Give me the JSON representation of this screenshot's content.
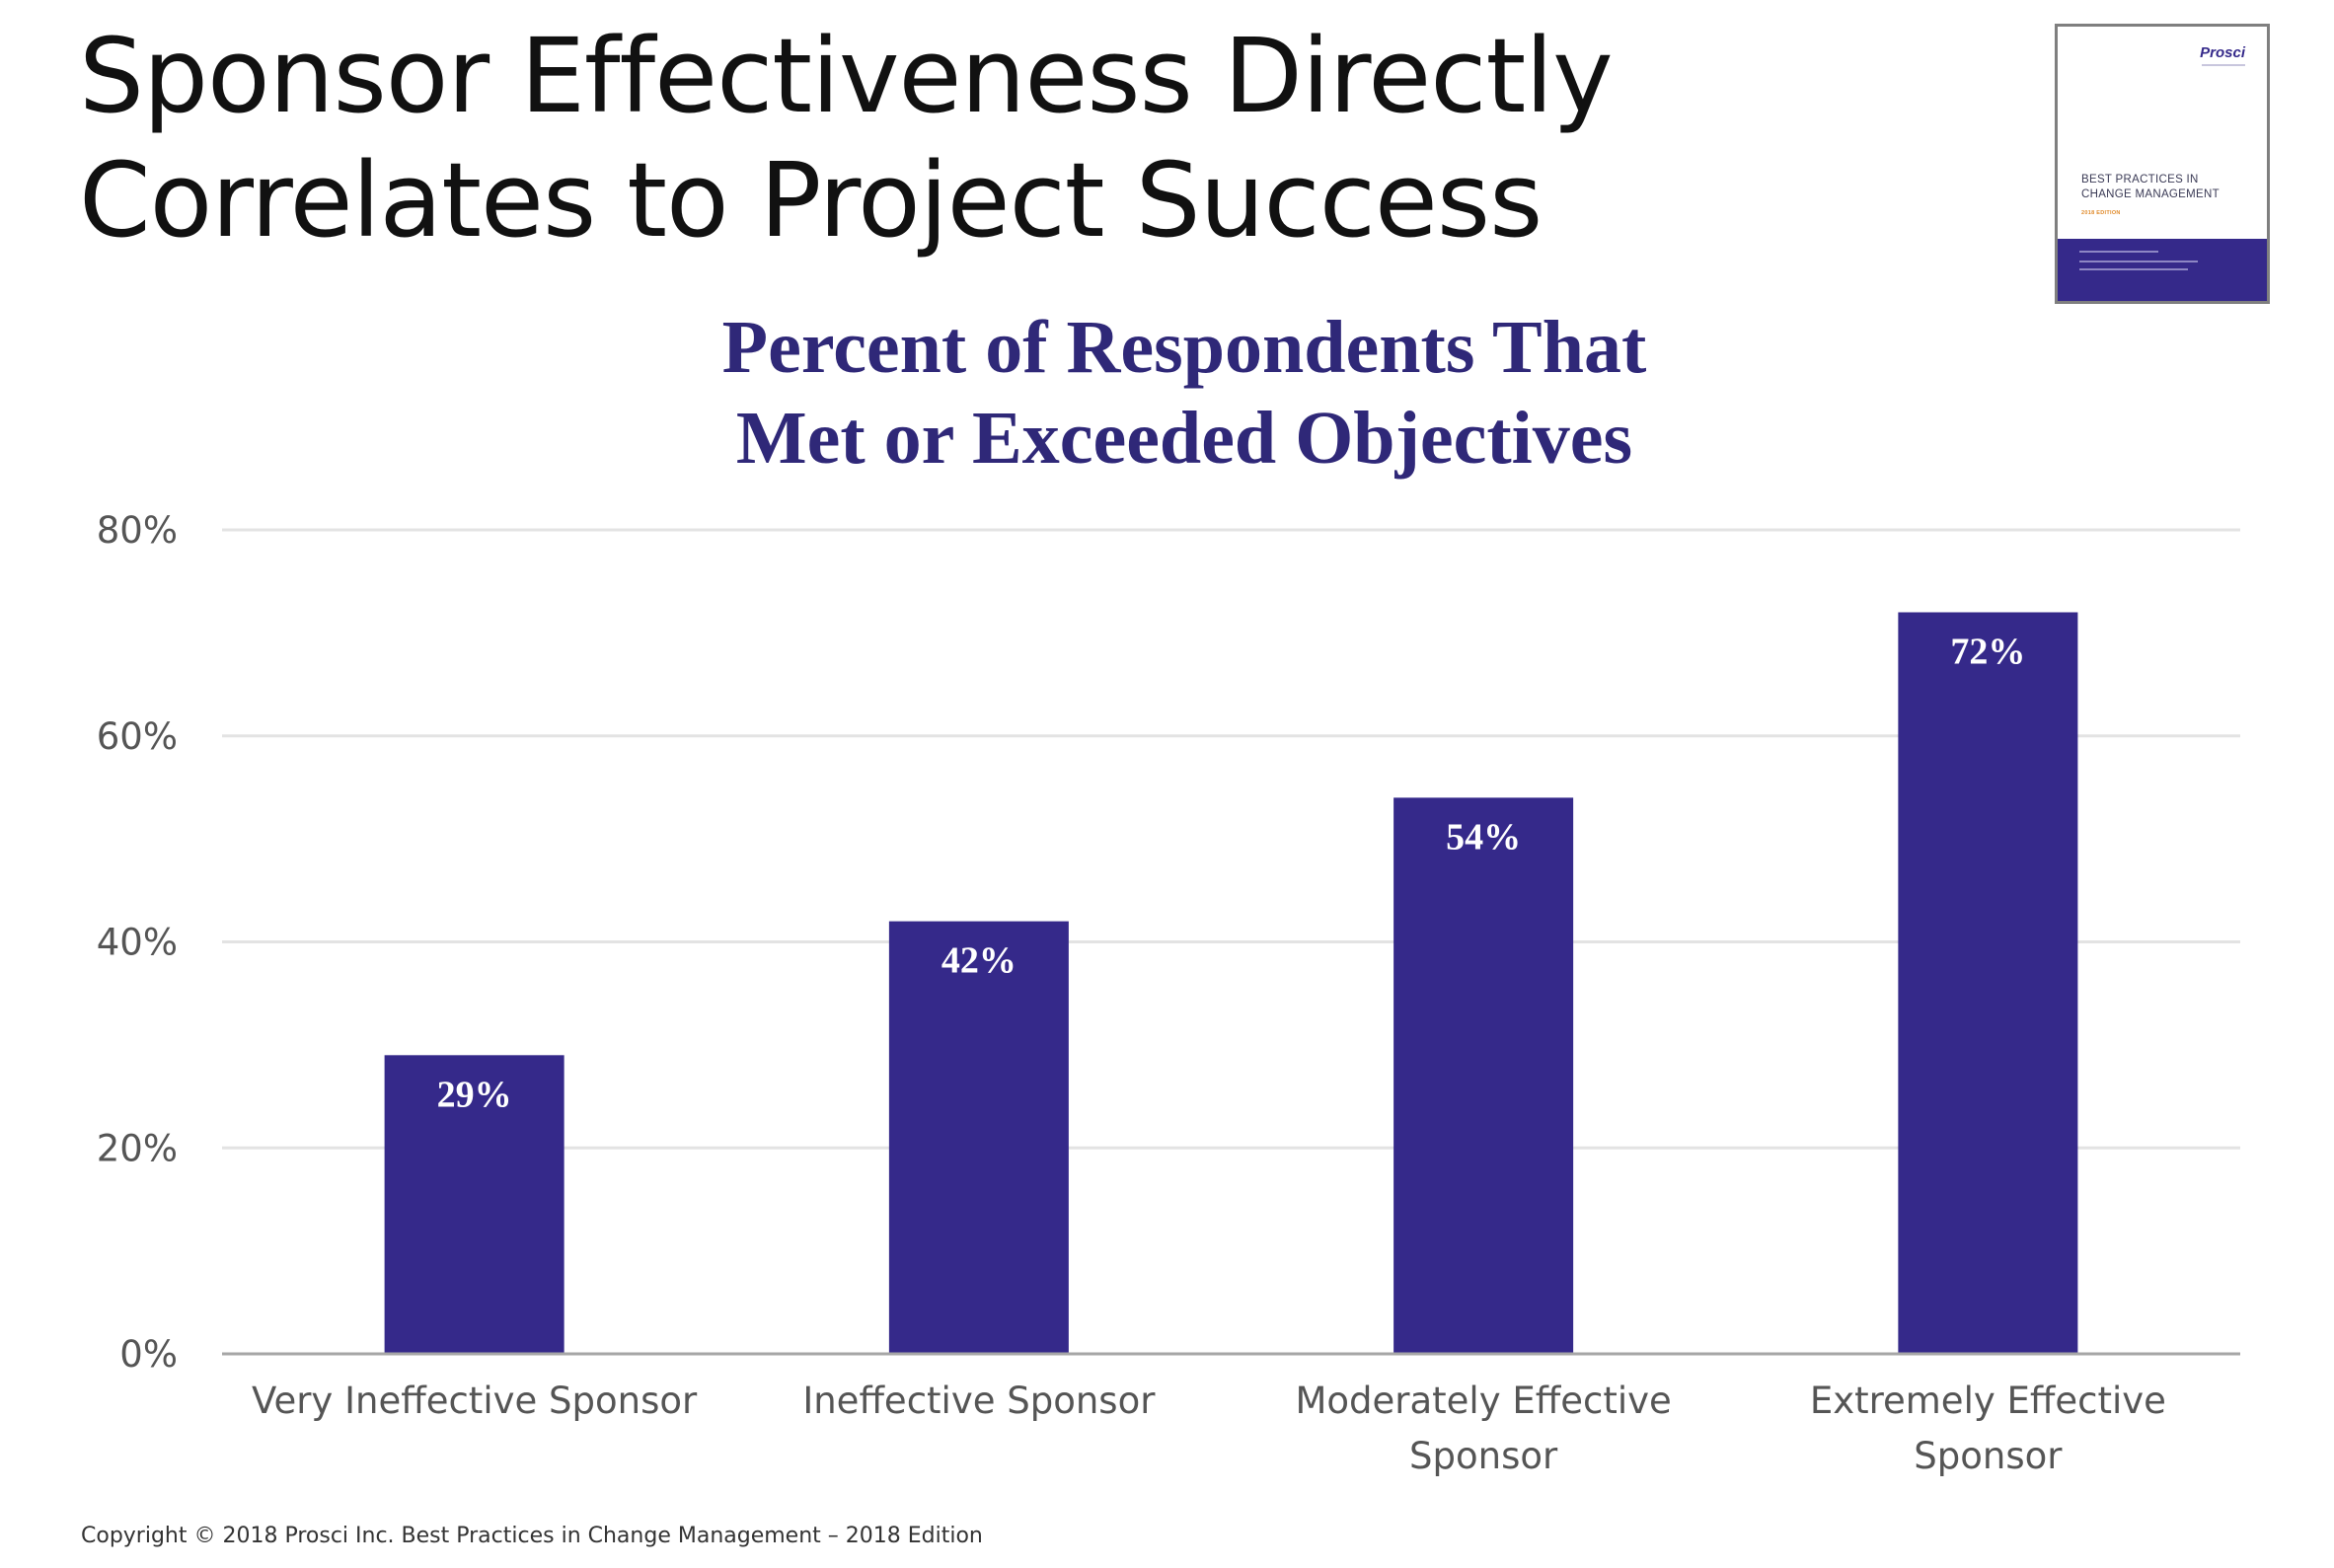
{
  "slide": {
    "title_lines": [
      "Sponsor Effectiveness Directly",
      "Correlates to Project Success"
    ],
    "footer": "Copyright © 2018 Prosci Inc. Best Practices in Change Management – 2018 Edition"
  },
  "book_cover": {
    "brand": "Prosci",
    "title_lines": [
      "BEST PRACTICES IN",
      "CHANGE MANAGEMENT"
    ],
    "edition": "2018 EDITION"
  },
  "colors": {
    "bar": "#35298a",
    "chart_title": "#2f2878",
    "gridline": "#e3e3e3",
    "axis": "#a6a6a6",
    "bar_label": "#ffffff"
  },
  "chart_data": {
    "type": "bar",
    "title_lines": [
      "Percent of Respondents That",
      "Met or Exceeded Objectives"
    ],
    "categories": [
      [
        "Very Ineffective Sponsor"
      ],
      [
        "Ineffective Sponsor"
      ],
      [
        "Moderately Effective",
        "Sponsor"
      ],
      [
        "Extremely Effective",
        "Sponsor"
      ]
    ],
    "values": [
      29,
      42,
      54,
      72
    ],
    "data_labels": [
      "29%",
      "42%",
      "54%",
      "72%"
    ],
    "ylim": [
      0,
      80
    ],
    "yticks": [
      0,
      20,
      40,
      60,
      80
    ],
    "ytick_labels": [
      "0%",
      "20%",
      "40%",
      "60%",
      "80%"
    ],
    "grid": true,
    "legend": "none"
  }
}
